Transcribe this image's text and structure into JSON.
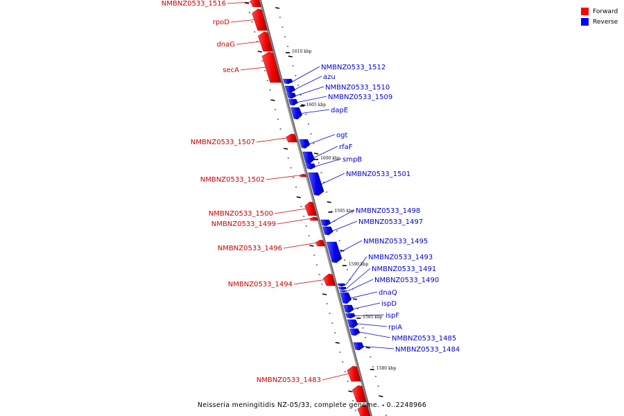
{
  "caption": "Neisseria meningitidis NZ-05/33, complete genome. - 0..2248966",
  "legend": {
    "forward_label": "Forward",
    "reverse_label": "Reverse",
    "forward_color": "#ff0000",
    "reverse_color": "#0000ff"
  },
  "colors": {
    "backbone": "#8a8a8a",
    "forward_label": "#cc0000",
    "reverse_label": "#0000cc"
  },
  "kbp_markers": [
    "1610 kbp",
    "1605 kbp",
    "1600 kbp",
    "1595 kbp",
    "1590 kbp",
    "1585 kbp",
    "1580 kbp"
  ],
  "forward_genes": [
    {
      "name": "NMBNZ0533_1516"
    },
    {
      "name": "rpoD"
    },
    {
      "name": "dnaG"
    },
    {
      "name": "secA"
    },
    {
      "name": "NMBNZ0533_1507"
    },
    {
      "name": "NMBNZ0533_1502"
    },
    {
      "name": "NMBNZ0533_1500"
    },
    {
      "name": "NMBNZ0533_1499"
    },
    {
      "name": "NMBNZ0533_1496"
    },
    {
      "name": "NMBNZ0533_1494"
    },
    {
      "name": "NMBNZ0533_1483"
    }
  ],
  "reverse_genes": [
    {
      "name": "NMBNZ0533_1512"
    },
    {
      "name": "azu"
    },
    {
      "name": "NMBNZ0533_1510"
    },
    {
      "name": "NMBNZ0533_1509"
    },
    {
      "name": "dapE"
    },
    {
      "name": "ogt"
    },
    {
      "name": "rfaF"
    },
    {
      "name": "smpB"
    },
    {
      "name": "NMBNZ0533_1501"
    },
    {
      "name": "NMBNZ0533_1498"
    },
    {
      "name": "NMBNZ0533_1497"
    },
    {
      "name": "NMBNZ0533_1495"
    },
    {
      "name": "NMBNZ0533_1493"
    },
    {
      "name": "NMBNZ0533_1491"
    },
    {
      "name": "NMBNZ0533_1490"
    },
    {
      "name": "dnaQ"
    },
    {
      "name": "ispD"
    },
    {
      "name": "ispF"
    },
    {
      "name": "rpiA"
    },
    {
      "name": "NMBNZ0533_1485"
    },
    {
      "name": "NMBNZ0533_1484"
    }
  ]
}
